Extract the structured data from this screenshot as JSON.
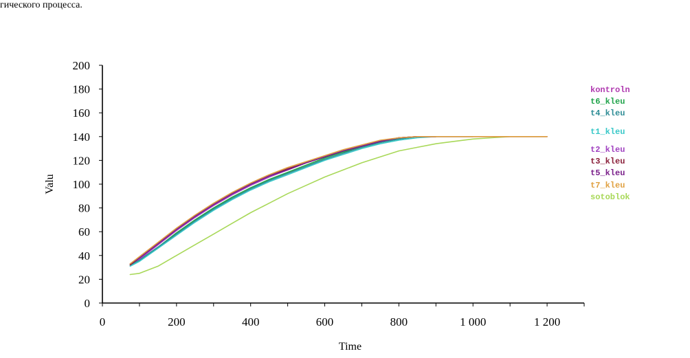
{
  "caption": "гического процесса.",
  "chart_data": {
    "type": "line",
    "title": "",
    "xlabel": "Time",
    "ylabel": "Valu",
    "xlim": [
      0,
      1300
    ],
    "ylim": [
      0,
      200
    ],
    "x_ticks": [
      0,
      200,
      400,
      600,
      800,
      1000,
      1200
    ],
    "x_tick_labels": [
      "0",
      "200",
      "400",
      "600",
      "800",
      "1 000",
      "1 200"
    ],
    "y_ticks": [
      0,
      20,
      40,
      60,
      80,
      100,
      120,
      140,
      160,
      180,
      200
    ],
    "y_tick_labels": [
      "0",
      "20",
      "40",
      "60",
      "80",
      "100",
      "120",
      "140",
      "160",
      "180",
      "200"
    ],
    "grid": false,
    "legend_position": "right",
    "series": [
      {
        "name": "kontroln",
        "color": "#b03ab0",
        "x": [
          75,
          100,
          150,
          200,
          250,
          300,
          350,
          400,
          450,
          500,
          550,
          600,
          650,
          700,
          750,
          800,
          850,
          900,
          1000,
          1100,
          1200
        ],
        "y": [
          32,
          37,
          49,
          61,
          72,
          82,
          91,
          99,
          106,
          112,
          118,
          123,
          128,
          132,
          136,
          139,
          140,
          140,
          140,
          140,
          140
        ]
      },
      {
        "name": "t6_kleu",
        "color": "#1fa34a",
        "x": [
          75,
          100,
          150,
          200,
          250,
          300,
          350,
          400,
          450,
          500,
          550,
          600,
          650,
          700,
          750,
          800,
          850,
          900
        ],
        "y": [
          32,
          36,
          47,
          59,
          70,
          80,
          89,
          97,
          104,
          110,
          116,
          122,
          127,
          131,
          135,
          138,
          140,
          140
        ]
      },
      {
        "name": "t4_kleu",
        "color": "#2d8c95",
        "x": [
          75,
          100,
          150,
          200,
          250,
          300,
          350,
          400,
          450,
          500,
          550,
          600,
          650,
          700,
          750,
          800,
          850,
          900,
          1000
        ],
        "y": [
          32,
          36,
          47,
          58,
          69,
          79,
          88,
          96,
          103,
          109,
          115,
          121,
          126,
          131,
          135,
          138,
          140,
          140,
          140
        ]
      },
      {
        "name": "t1_kleu",
        "color": "#38c8c8",
        "x": [
          75,
          100,
          150,
          200,
          250,
          300,
          350,
          400,
          450,
          500,
          550,
          600,
          650,
          700,
          750,
          800,
          850,
          900
        ],
        "y": [
          31,
          35,
          46,
          57,
          68,
          78,
          87,
          95,
          102,
          108,
          114,
          120,
          125,
          130,
          134,
          137,
          139,
          140
        ]
      },
      {
        "name": "t2_kleu",
        "color": "#a040c0",
        "x": [
          75,
          100,
          150,
          200,
          250,
          300,
          350,
          400,
          450,
          500,
          550,
          600,
          650,
          700,
          750,
          800,
          850,
          900
        ],
        "y": [
          33,
          37,
          49,
          61,
          72,
          82,
          91,
          99,
          106,
          112,
          118,
          123,
          128,
          132,
          136,
          139,
          140,
          140
        ]
      },
      {
        "name": "t3_kleu",
        "color": "#8a1f3a",
        "x": [
          75,
          100,
          150,
          200,
          250,
          300,
          350,
          400,
          450,
          500,
          550,
          600,
          650,
          700,
          750,
          800,
          850,
          900
        ],
        "y": [
          32,
          38,
          50,
          62,
          73,
          83,
          92,
          100,
          107,
          113,
          118,
          123,
          128,
          132,
          136,
          139,
          140,
          140
        ]
      },
      {
        "name": "t5_kleu",
        "color": "#7a1f8a",
        "x": [
          75,
          100,
          150,
          200,
          250,
          300,
          350,
          400,
          450,
          500,
          550,
          600,
          650,
          700,
          750,
          800,
          850,
          900
        ],
        "y": [
          33,
          38,
          50,
          62,
          73,
          83,
          92,
          100,
          107,
          112,
          118,
          123,
          128,
          132,
          136,
          139,
          140,
          140
        ]
      },
      {
        "name": "t7_kleu",
        "color": "#e0a040",
        "x": [
          75,
          100,
          150,
          200,
          250,
          300,
          350,
          400,
          450,
          500,
          550,
          600,
          650,
          700,
          750,
          800,
          850,
          900,
          1000,
          1100,
          1200
        ],
        "y": [
          33,
          39,
          51,
          63,
          74,
          84,
          93,
          101,
          108,
          114,
          119,
          124,
          129,
          133,
          137,
          139,
          140,
          140,
          140,
          140,
          140
        ]
      },
      {
        "name": "sotoblok",
        "color": "#a8d858",
        "x": [
          75,
          100,
          150,
          200,
          250,
          300,
          350,
          400,
          450,
          500,
          550,
          600,
          650,
          700,
          750,
          800,
          850,
          900,
          950,
          1000,
          1050,
          1100,
          1150,
          1200
        ],
        "y": [
          24,
          25,
          31,
          40,
          49,
          58,
          67,
          76,
          84,
          92,
          99,
          106,
          112,
          118,
          123,
          128,
          131,
          134,
          136,
          138,
          139,
          140,
          140,
          140
        ]
      }
    ]
  }
}
